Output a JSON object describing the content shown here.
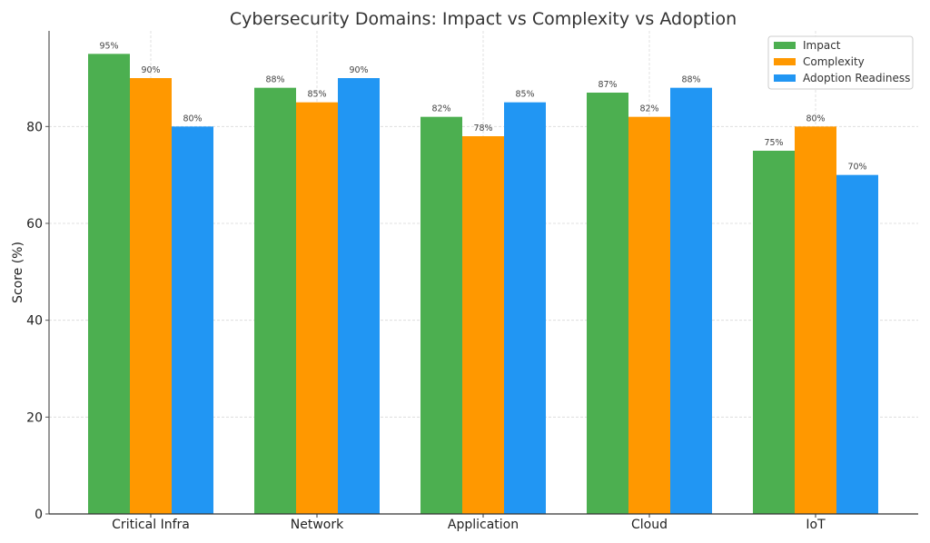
{
  "chart_data": {
    "type": "bar",
    "title": "Cybersecurity Domains: Impact vs Complexity vs Adoption",
    "xlabel": "",
    "ylabel": "Score (%)",
    "ylim": [
      0,
      99.75
    ],
    "yticks": [
      0,
      20,
      40,
      60,
      80
    ],
    "grid": true,
    "legend_position": "top-right",
    "categories": [
      "Critical Infra",
      "Network",
      "Application",
      "Cloud",
      "IoT"
    ],
    "series": [
      {
        "name": "Impact",
        "color": "#4caf50",
        "values": [
          95,
          88,
          82,
          87,
          75
        ]
      },
      {
        "name": "Complexity",
        "color": "#ff9800",
        "values": [
          90,
          85,
          78,
          82,
          80
        ]
      },
      {
        "name": "Adoption Readiness",
        "color": "#2196f3",
        "values": [
          80,
          90,
          85,
          88,
          70
        ]
      }
    ],
    "data_label_suffix": "%"
  }
}
